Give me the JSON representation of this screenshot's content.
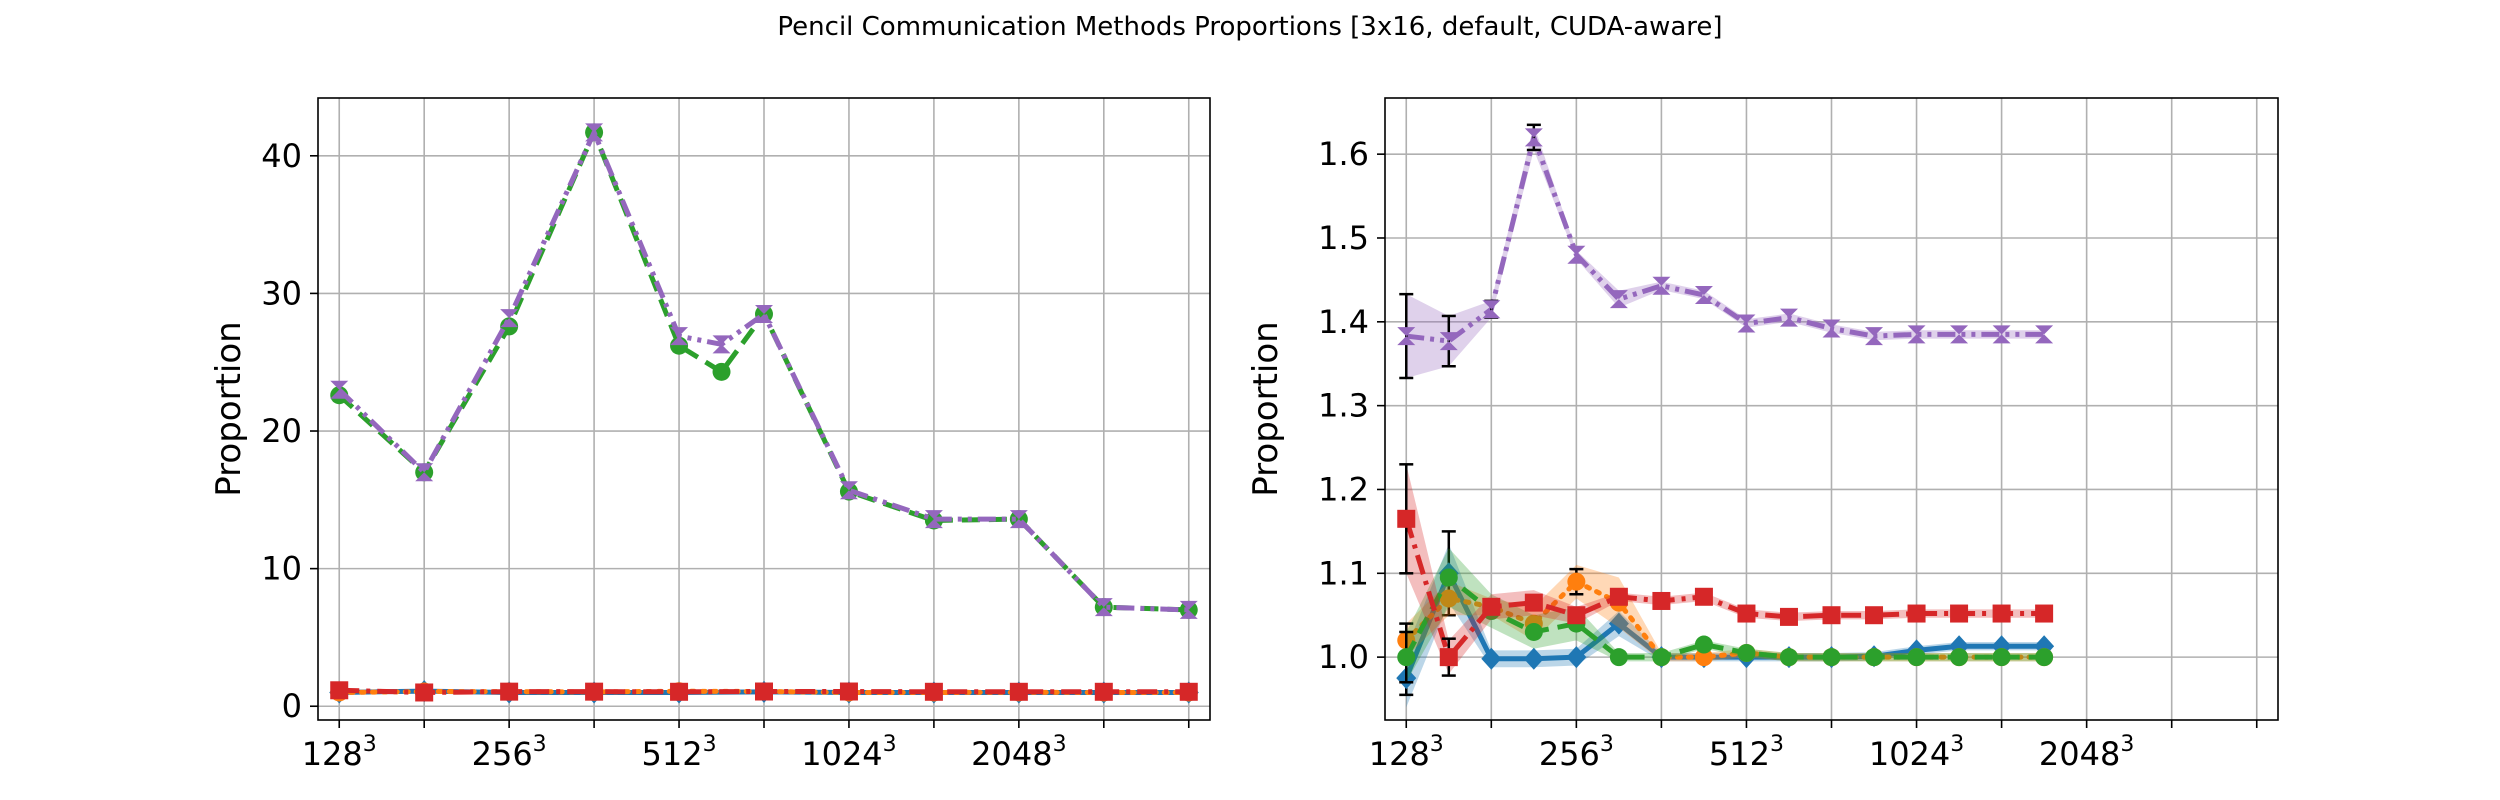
{
  "figure": {
    "title": "Pencil Communication Methods Proportions [3x16, default, CUDA-aware]"
  },
  "colors": {
    "blue": "#1f77b4",
    "orange": "#ff7f0e",
    "green": "#2ca02c",
    "red": "#d62728",
    "purple": "#9467bd",
    "grid": "#b0b0b0",
    "errorbar": "#000000"
  },
  "chart_data": [
    {
      "type": "line",
      "panel": "left",
      "ylabel": "Proportion",
      "xlabel": "",
      "x_tick_labels": [
        {
          "base": "128",
          "exp": "3"
        },
        {
          "base": "256",
          "exp": "3"
        },
        {
          "base": "512",
          "exp": "3"
        },
        {
          "base": "1024",
          "exp": "3"
        },
        {
          "base": "2048",
          "exp": "3"
        }
      ],
      "x_tick_positions": [
        0,
        2,
        4,
        6,
        8,
        10,
        12,
        14,
        16,
        18,
        20
      ],
      "x_label_positions": [
        0,
        4,
        8,
        12,
        16
      ],
      "xlim": [
        -0.5,
        20.5
      ],
      "ylim": [
        -1.0,
        44.2
      ],
      "y_ticks": [
        0,
        10,
        20,
        30,
        40
      ],
      "grid": true,
      "series": [
        {
          "color": "#1f77b4",
          "linestyle": "solid",
          "marker": "diamond",
          "x": [
            0,
            2,
            4,
            6,
            8,
            10,
            12,
            14,
            16,
            18,
            20
          ],
          "values": [
            1.0,
            1.1,
            1.0,
            1.0,
            1.0,
            1.04,
            1.0,
            1.0,
            1.0,
            1.0,
            1.0
          ]
        },
        {
          "color": "#ff7f0e",
          "linestyle": "dotted",
          "marker": "circle",
          "x": [
            0,
            2,
            4,
            6,
            8,
            10,
            12,
            14,
            16,
            18,
            20
          ],
          "values": [
            1.0,
            1.07,
            1.06,
            1.04,
            1.09,
            1.07,
            1.0,
            1.0,
            1.01,
            1.0,
            1.0
          ]
        },
        {
          "color": "#2ca02c",
          "linestyle": "dashed",
          "marker": "circle",
          "x": [
            0,
            2,
            4,
            6,
            8,
            9,
            10,
            12,
            14,
            16,
            18,
            20
          ],
          "values": [
            22.6,
            17.0,
            27.6,
            41.7,
            26.2,
            24.3,
            28.5,
            15.6,
            13.5,
            13.6,
            7.2,
            7.0
          ]
        },
        {
          "color": "#d62728",
          "linestyle": "dashdot",
          "marker": "square",
          "x": [
            0,
            2,
            4,
            6,
            8,
            10,
            12,
            14,
            16,
            18,
            20
          ],
          "values": [
            1.16,
            1.0,
            1.06,
            1.06,
            1.05,
            1.07,
            1.07,
            1.05,
            1.05,
            1.05,
            1.05
          ]
        },
        {
          "color": "#9467bd",
          "linestyle": "dashdot-dot",
          "marker": "hourglass",
          "x": [
            0,
            2,
            4,
            6,
            8,
            9,
            10,
            12,
            14,
            16,
            18,
            20
          ],
          "values": [
            23.0,
            17.0,
            28.2,
            41.7,
            26.9,
            26.3,
            28.5,
            15.7,
            13.6,
            13.6,
            7.2,
            7.0
          ]
        }
      ]
    },
    {
      "type": "line",
      "panel": "right",
      "ylabel": "Proportion",
      "xlabel": "",
      "x_tick_labels": [
        {
          "base": "128",
          "exp": "3"
        },
        {
          "base": "256",
          "exp": "3"
        },
        {
          "base": "512",
          "exp": "3"
        },
        {
          "base": "1024",
          "exp": "3"
        },
        {
          "base": "2048",
          "exp": "3"
        }
      ],
      "x_tick_positions": [
        0,
        2,
        4,
        6,
        8,
        10,
        12,
        14,
        16,
        18,
        20
      ],
      "x_label_positions": [
        0,
        4,
        8,
        12,
        16
      ],
      "xlim": [
        -0.5,
        20.5
      ],
      "ylim": [
        0.925,
        1.667
      ],
      "y_ticks": [
        1.0,
        1.1,
        1.2,
        1.3,
        1.4,
        1.5,
        1.6
      ],
      "y_tick_labels": [
        "1.0",
        "1.1",
        "1.2",
        "1.3",
        "1.4",
        "1.5",
        "1.6"
      ],
      "grid": true,
      "series": [
        {
          "color": "#1f77b4",
          "linestyle": "solid",
          "marker": "diamond",
          "x": [
            0,
            1,
            2,
            3,
            4,
            5,
            6,
            7,
            8,
            9,
            10,
            11,
            12,
            13,
            14,
            15
          ],
          "values": [
            0.975,
            1.1,
            0.998,
            0.998,
            1.0,
            1.04,
            1.0,
            1.0,
            1.0,
            1.0,
            1.0,
            1.001,
            1.008,
            1.013,
            1.013,
            1.013
          ],
          "band": [
            0.035,
            0.035,
            0.01,
            0.01,
            0.01,
            0.015,
            0.005,
            0.005,
            0.005,
            0.005,
            0.005,
            0.005,
            0.005,
            0.005,
            0.005,
            0.005
          ],
          "errbar": [
            0.02,
            0.05,
            0.0,
            0.0,
            0.0,
            0.0,
            0.0,
            0.0,
            0.0,
            0.0,
            0.0,
            0.0,
            0.0,
            0.0,
            0.0,
            0.0
          ]
        },
        {
          "color": "#ff7f0e",
          "linestyle": "dotted",
          "marker": "circle",
          "x": [
            0,
            1,
            2,
            3,
            4,
            5,
            6,
            7,
            8,
            9,
            10,
            11,
            12,
            13,
            14,
            15
          ],
          "values": [
            1.02,
            1.07,
            1.06,
            1.04,
            1.09,
            1.065,
            1.0,
            1.0,
            1.005,
            1.0,
            1.0,
            1.0,
            1.0,
            1.0,
            1.0,
            1.0
          ],
          "band": [
            0.02,
            0.02,
            0.01,
            0.02,
            0.02,
            0.03,
            0.005,
            0.005,
            0.005,
            0.005,
            0.005,
            0.005,
            0.005,
            0.005,
            0.005,
            0.005
          ],
          "errbar": [
            0.02,
            0.0,
            0.0,
            0.0,
            0.015,
            0.0,
            0.0,
            0.0,
            0.0,
            0.0,
            0.0,
            0.0,
            0.0,
            0.0,
            0.0,
            0.0
          ]
        },
        {
          "color": "#2ca02c",
          "linestyle": "dashed",
          "marker": "circle",
          "x": [
            0,
            1,
            2,
            3,
            4,
            5,
            6,
            7,
            8,
            9,
            10,
            11,
            12,
            13,
            14,
            15
          ],
          "values": [
            1.0,
            1.095,
            1.055,
            1.03,
            1.04,
            1.0,
            1.0,
            1.015,
            1.005,
            1.0,
            1.0,
            1.0,
            1.0,
            1.0,
            1.0,
            1.0
          ],
          "band": [
            0.03,
            0.035,
            0.02,
            0.02,
            0.02,
            0.005,
            0.005,
            0.005,
            0.005,
            0.005,
            0.005,
            0.005,
            0.005,
            0.005,
            0.005,
            0.005
          ],
          "errbar": [
            0.03,
            0.0,
            0.0,
            0.0,
            0.0,
            0.0,
            0.0,
            0.0,
            0.0,
            0.0,
            0.0,
            0.0,
            0.0,
            0.0,
            0.0,
            0.0
          ]
        },
        {
          "color": "#d62728",
          "linestyle": "dashdot",
          "marker": "square",
          "x": [
            0,
            1,
            2,
            3,
            4,
            5,
            6,
            7,
            8,
            9,
            10,
            11,
            12,
            13,
            14,
            15
          ],
          "values": [
            1.165,
            1.0,
            1.06,
            1.065,
            1.05,
            1.072,
            1.067,
            1.072,
            1.052,
            1.048,
            1.05,
            1.05,
            1.052,
            1.052,
            1.052,
            1.052
          ],
          "band": [
            0.065,
            0.02,
            0.015,
            0.015,
            0.01,
            0.005,
            0.005,
            0.005,
            0.005,
            0.005,
            0.005,
            0.005,
            0.005,
            0.005,
            0.005,
            0.005
          ],
          "errbar": [
            0.065,
            0.022,
            0.0,
            0.0,
            0.0,
            0.0,
            0.0,
            0.0,
            0.0,
            0.0,
            0.0,
            0.0,
            0.0,
            0.0,
            0.0,
            0.0
          ]
        },
        {
          "color": "#9467bd",
          "linestyle": "dashdot-dot",
          "marker": "hourglass",
          "x": [
            0,
            1,
            2,
            3,
            4,
            5,
            6,
            7,
            8,
            9,
            10,
            11,
            12,
            13,
            14,
            15
          ],
          "values": [
            1.383,
            1.377,
            1.415,
            1.62,
            1.48,
            1.427,
            1.443,
            1.432,
            1.398,
            1.405,
            1.392,
            1.383,
            1.385,
            1.385,
            1.385,
            1.385
          ],
          "band": [
            0.05,
            0.03,
            0.01,
            0.015,
            0.005,
            0.01,
            0.005,
            0.005,
            0.005,
            0.005,
            0.005,
            0.005,
            0.005,
            0.005,
            0.005,
            0.005
          ],
          "errbar": [
            0.05,
            0.03,
            0.01,
            0.015,
            0.0,
            0.0,
            0.0,
            0.0,
            0.0,
            0.0,
            0.0,
            0.0,
            0.0,
            0.0,
            0.0,
            0.0
          ]
        }
      ]
    }
  ]
}
